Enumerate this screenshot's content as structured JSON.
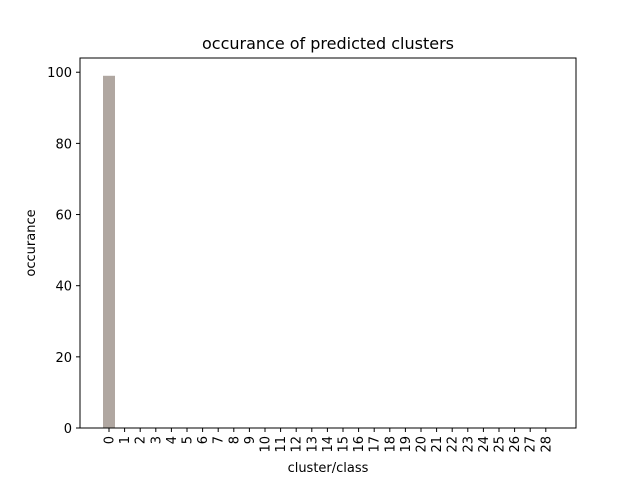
{
  "chart_data": {
    "type": "bar",
    "title": "occurance of predicted clusters",
    "xlabel": "cluster/class",
    "ylabel": "occurance",
    "categories": [
      "0",
      "1",
      "2",
      "3",
      "4",
      "5",
      "6",
      "7",
      "8",
      "9",
      "10",
      "11",
      "12",
      "13",
      "14",
      "15",
      "16",
      "17",
      "18",
      "19",
      "20",
      "21",
      "22",
      "23",
      "24",
      "25",
      "26",
      "27",
      "28"
    ],
    "values": [
      99,
      0,
      0,
      0,
      0,
      0,
      0,
      0,
      0,
      0,
      0,
      0,
      0,
      0,
      0,
      0,
      0,
      0,
      0,
      0,
      0,
      0,
      0,
      0,
      0,
      0,
      0,
      0,
      0
    ],
    "ylim": [
      0,
      104
    ],
    "yticks": [
      0,
      20,
      40,
      60,
      80,
      100
    ],
    "bar_color": "#b0a7a1",
    "grid": false
  }
}
